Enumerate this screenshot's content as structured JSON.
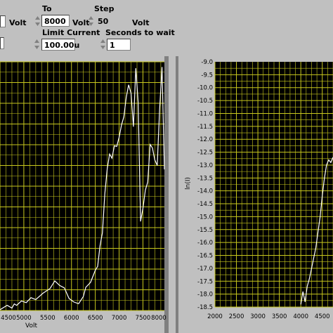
{
  "controls": {
    "unit_from": "Volt",
    "to_label": "To",
    "to_value": "8000",
    "to_unit": "Volt",
    "step_label": "Step",
    "step_value": "50",
    "step_unit": "Volt",
    "limit_current_label": "Limit Current",
    "limit_current_value": "100.00u",
    "seconds_label": "Seconds to wait",
    "seconds_value": "1"
  },
  "colors": {
    "plot_bg": "#000000",
    "grid": "#c8c81e",
    "trace": "#ffffff",
    "panel": "#c0c0c0"
  },
  "chart_data": [
    {
      "type": "line",
      "xlabel": "Volt",
      "ylabel": "",
      "xlim": [
        4500,
        7950
      ],
      "xticks": [
        "4500",
        "5000",
        "5500",
        "6000",
        "6500",
        "7000",
        "7500",
        "8000"
      ],
      "x": [
        4500,
        4650,
        4750,
        4800,
        4850,
        4950,
        5050,
        5150,
        5250,
        5400,
        5550,
        5650,
        5750,
        5850,
        5950,
        6050,
        6150,
        6250,
        6300,
        6400,
        6500,
        6550,
        6600,
        6650,
        6700,
        6750,
        6800,
        6850,
        6900,
        6950,
        7000,
        7050,
        7100,
        7150,
        7200,
        7250,
        7300,
        7350,
        7400,
        7450,
        7500,
        7550,
        7600,
        7650,
        7700,
        7750,
        7800,
        7850,
        7900,
        7950
      ],
      "y": [
        0.4,
        2.5,
        1.2,
        3.2,
        2.5,
        4.6,
        3.8,
        6.2,
        5.3,
        8.3,
        10.6,
        14.3,
        12.1,
        10.9,
        5.8,
        4.1,
        3.3,
        6.8,
        11.2,
        13.6,
        19.5,
        21.3,
        31.3,
        37.5,
        56.3,
        68.3,
        75.5,
        73.5,
        79.5,
        79.2,
        83.7,
        89.6,
        93.5,
        102.8,
        108.9,
        104.9,
        88.7,
        116.9,
        100.3,
        43.0,
        49.4,
        58.1,
        62.0,
        80.1,
        78.4,
        72.6,
        70.0,
        97.1,
        117.5,
        68.1
      ]
    },
    {
      "type": "line",
      "xlabel": "",
      "ylabel": "ln(I)",
      "xlim": [
        2000,
        4750
      ],
      "ylim": [
        -18.5,
        -9.0
      ],
      "xticks": [
        "2000",
        "2500",
        "3000",
        "3500",
        "4000",
        "4500"
      ],
      "yticks": [
        "-9.0",
        "-9.5",
        "-10.0",
        "-10.5",
        "-11.0",
        "-11.5",
        "-12.0",
        "-12.5",
        "-13.0",
        "-13.5",
        "-14.0",
        "-14.5",
        "-15.0",
        "-15.5",
        "-16.0",
        "-16.5",
        "-17.0",
        "-17.5",
        "-18.0",
        "-18.5"
      ],
      "x": [
        4000,
        4050,
        4100,
        4150,
        4200,
        4250,
        4300,
        4350,
        4400,
        4450,
        4500,
        4550,
        4600,
        4650,
        4700,
        4750
      ],
      "y": [
        -18.4,
        -17.9,
        -18.3,
        -17.7,
        -17.4,
        -17.0,
        -16.6,
        -16.2,
        -15.6,
        -15.0,
        -14.2,
        -13.5,
        -13.0,
        -12.8,
        -12.9,
        -12.7
      ]
    }
  ]
}
